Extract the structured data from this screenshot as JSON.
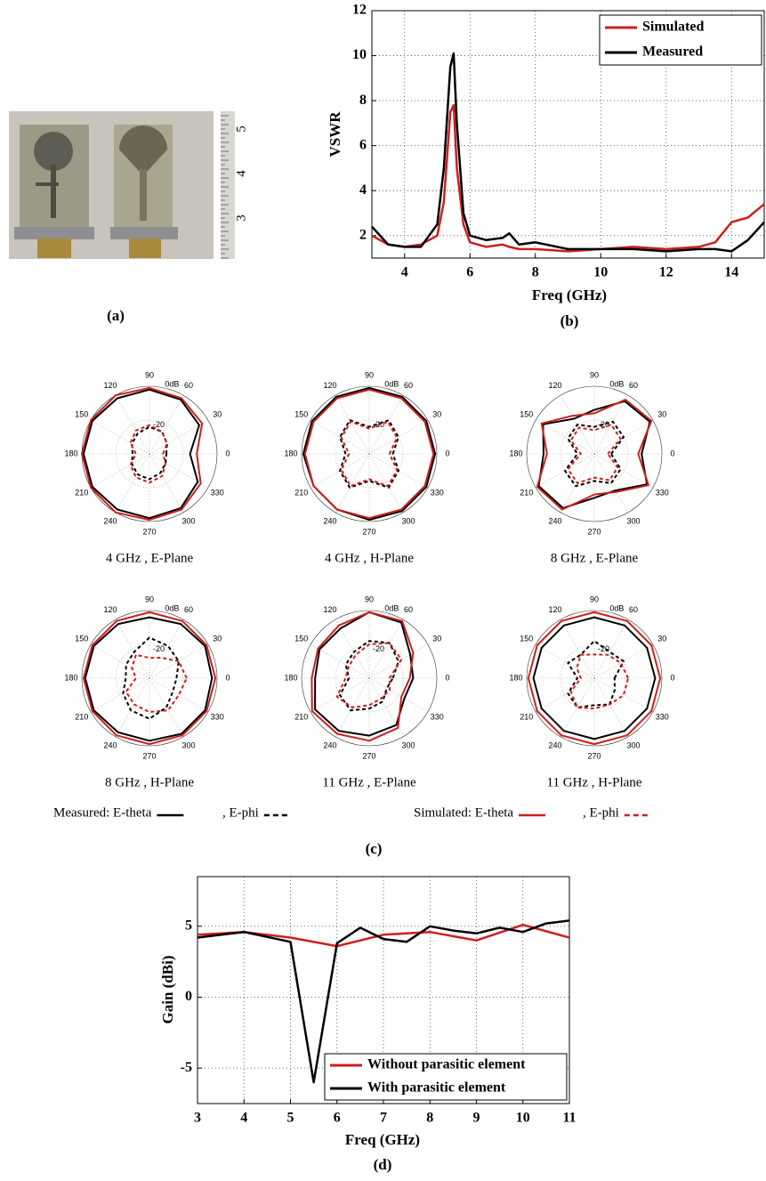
{
  "panel_labels": [
    "(a)",
    "(b)",
    "(c)",
    "(d)"
  ],
  "photo": {
    "ruler_labels": [
      "5",
      "4",
      "3"
    ]
  },
  "polar_legend": {
    "entries": [
      {
        "text": "Measured: E-theta",
        "color": "#000000",
        "dashed": false
      },
      {
        "text": ", E-phi",
        "color": "#000000",
        "dashed": true
      },
      {
        "text": "Simulated: E-theta",
        "color": "#cc1f1f",
        "dashed": false
      },
      {
        "text": ", E-phi",
        "color": "#cc1f1f",
        "dashed": true
      }
    ]
  },
  "chart_data": [
    {
      "type": "line",
      "xlabel": "Freq (GHz)",
      "ylabel": "VSWR",
      "xlim": [
        3,
        15
      ],
      "ylim": [
        1,
        12
      ],
      "xticks": [
        4,
        6,
        8,
        10,
        12,
        14
      ],
      "yticks": [
        2,
        4,
        6,
        8,
        10,
        12
      ],
      "grid": true,
      "legend": "upper right",
      "series": [
        {
          "name": "Simulated",
          "color": "#cc1f1f",
          "x": [
            3,
            3.5,
            4,
            4.5,
            5,
            5.2,
            5.4,
            5.5,
            5.6,
            5.8,
            6,
            6.5,
            7,
            7.2,
            7.5,
            8,
            9,
            10,
            11,
            12,
            13,
            13.5,
            14,
            14.5,
            15
          ],
          "values": [
            2.0,
            1.6,
            1.5,
            1.6,
            2.0,
            3.5,
            7.5,
            7.8,
            5,
            2.5,
            1.7,
            1.5,
            1.6,
            1.5,
            1.4,
            1.4,
            1.3,
            1.4,
            1.5,
            1.4,
            1.5,
            1.7,
            2.6,
            2.8,
            3.4
          ]
        },
        {
          "name": "Measured",
          "color": "#000000",
          "x": [
            3,
            3.5,
            4,
            4.5,
            5,
            5.2,
            5.4,
            5.5,
            5.6,
            5.8,
            6,
            6.5,
            7,
            7.2,
            7.5,
            8,
            9,
            10,
            11,
            12,
            13,
            13.5,
            14,
            14.5,
            15
          ],
          "values": [
            2.4,
            1.6,
            1.5,
            1.5,
            2.5,
            5,
            9.5,
            10.1,
            7,
            3,
            2,
            1.8,
            1.9,
            2.1,
            1.6,
            1.7,
            1.4,
            1.4,
            1.4,
            1.3,
            1.4,
            1.4,
            1.3,
            1.8,
            2.6
          ]
        }
      ]
    },
    {
      "type": "polar",
      "title": "4 GHz , E-Plane",
      "theta": [
        0,
        30,
        60,
        90,
        120,
        150,
        180,
        210,
        240,
        270,
        300,
        330
      ],
      "rlim": [
        -40,
        0
      ],
      "rticks": [
        {
          "value": 0,
          "label": "0dB"
        },
        -20
      ],
      "series": [
        {
          "color": "#000000",
          "dashed": false,
          "values": [
            -16,
            -6,
            -3,
            -2,
            -2,
            -1,
            -1,
            -1,
            -2,
            -2,
            -3,
            -7
          ]
        },
        {
          "color": "#000000",
          "dashed": true,
          "values": [
            -30,
            -28,
            -25,
            -24,
            -26,
            -28,
            -30,
            -28,
            -26,
            -25,
            -27,
            -29
          ]
        },
        {
          "color": "#cc1f1f",
          "dashed": false,
          "values": [
            -12,
            -4,
            -2,
            -1,
            0,
            0,
            0,
            0,
            0,
            -1,
            -2,
            -5
          ]
        },
        {
          "color": "#cc1f1f",
          "dashed": true,
          "values": [
            -32,
            -28,
            -25,
            -23,
            -24,
            -27,
            -32,
            -27,
            -24,
            -23,
            -25,
            -29
          ]
        }
      ]
    },
    {
      "type": "polar",
      "title": "4 GHz , H-Plane",
      "theta": [
        0,
        30,
        60,
        90,
        120,
        150,
        180,
        210,
        240,
        270,
        300,
        330
      ],
      "rlim": [
        -40,
        0
      ],
      "rticks": [
        {
          "value": 0,
          "label": "0dB"
        },
        -20
      ],
      "series": [
        {
          "color": "#000000",
          "dashed": false,
          "values": [
            -1,
            -1,
            -1,
            -1,
            -1,
            -1,
            -1,
            -2,
            -2,
            -1,
            -1,
            -1
          ]
        },
        {
          "color": "#000000",
          "dashed": true,
          "values": [
            -26,
            -20,
            -17,
            -24,
            -17,
            -20,
            -26,
            -20,
            -17,
            -24,
            -17,
            -20
          ]
        },
        {
          "color": "#cc1f1f",
          "dashed": false,
          "values": [
            -2,
            -2,
            -2,
            -2,
            -2,
            -2,
            -2,
            -2,
            -2,
            -2,
            -2,
            -2
          ]
        },
        {
          "color": "#cc1f1f",
          "dashed": true,
          "values": [
            -28,
            -21,
            -18,
            -25,
            -18,
            -21,
            -28,
            -21,
            -18,
            -25,
            -18,
            -21
          ]
        }
      ]
    },
    {
      "type": "polar",
      "title": "8 GHz , E-Plane",
      "theta": [
        0,
        30,
        60,
        90,
        120,
        150,
        180,
        210,
        240,
        270,
        300,
        330
      ],
      "rlim": [
        -40,
        0
      ],
      "rticks": [
        {
          "value": 0,
          "label": "0dB"
        },
        -20
      ],
      "series": [
        {
          "color": "#000000",
          "dashed": false,
          "values": [
            -12,
            -2,
            -4,
            -14,
            -16,
            -5,
            -10,
            -2,
            -3,
            -14,
            -15,
            -4
          ]
        },
        {
          "color": "#000000",
          "dashed": true,
          "values": [
            -30,
            -20,
            -18,
            -24,
            -20,
            -22,
            -30,
            -20,
            -18,
            -24,
            -20,
            -22
          ]
        },
        {
          "color": "#cc1f1f",
          "dashed": false,
          "values": [
            -14,
            -1,
            -3,
            -16,
            -14,
            -4,
            -12,
            -1,
            -2,
            -16,
            -14,
            -3
          ]
        },
        {
          "color": "#cc1f1f",
          "dashed": true,
          "values": [
            -32,
            -22,
            -20,
            -26,
            -22,
            -24,
            -32,
            -22,
            -20,
            -26,
            -22,
            -24
          ]
        }
      ]
    },
    {
      "type": "polar",
      "title": "8 GHz , H-Plane",
      "theta": [
        0,
        30,
        60,
        90,
        120,
        150,
        180,
        210,
        240,
        270,
        300,
        330
      ],
      "rlim": [
        -40,
        0
      ],
      "rticks": [
        {
          "value": 0,
          "label": "0dB"
        },
        -20
      ],
      "series": [
        {
          "color": "#000000",
          "dashed": false,
          "values": [
            -3,
            -2,
            -3,
            -4,
            -3,
            -2,
            -2,
            -2,
            -3,
            -3,
            -2,
            -2
          ]
        },
        {
          "color": "#000000",
          "dashed": true,
          "values": [
            -24,
            -20,
            -18,
            -16,
            -22,
            -24,
            -26,
            -22,
            -18,
            -16,
            -20,
            -24
          ]
        },
        {
          "color": "#cc1f1f",
          "dashed": false,
          "values": [
            -1,
            -1,
            -1,
            -1,
            -1,
            -1,
            -1,
            -1,
            -1,
            -1,
            -1,
            -1
          ]
        },
        {
          "color": "#cc1f1f",
          "dashed": true,
          "values": [
            -18,
            -20,
            -26,
            -28,
            -24,
            -28,
            -32,
            -24,
            -22,
            -20,
            -18,
            -20
          ]
        }
      ]
    },
    {
      "type": "polar",
      "title": "11 GHz , E-Plane",
      "theta": [
        0,
        30,
        60,
        90,
        120,
        150,
        180,
        210,
        240,
        270,
        300,
        330
      ],
      "rlim": [
        -40,
        0
      ],
      "rticks": [
        {
          "value": 0,
          "label": "0dB"
        },
        -20
      ],
      "series": [
        {
          "color": "#000000",
          "dashed": false,
          "values": [
            -14,
            -12,
            -2,
            -1,
            -6,
            -6,
            -8,
            -3,
            -4,
            -6,
            -8,
            -16
          ]
        },
        {
          "color": "#000000",
          "dashed": true,
          "values": [
            -26,
            -20,
            -16,
            -18,
            -22,
            -24,
            -28,
            -20,
            -18,
            -22,
            -24,
            -28
          ]
        },
        {
          "color": "#cc1f1f",
          "dashed": false,
          "values": [
            -16,
            -10,
            -1,
            -1,
            -4,
            -5,
            -6,
            -1,
            -2,
            -3,
            -6,
            -18
          ]
        },
        {
          "color": "#cc1f1f",
          "dashed": true,
          "values": [
            -28,
            -18,
            -16,
            -20,
            -24,
            -26,
            -26,
            -18,
            -20,
            -24,
            -26,
            -26
          ]
        }
      ]
    },
    {
      "type": "polar",
      "title": "11 GHz , H-Plane",
      "theta": [
        0,
        30,
        60,
        90,
        120,
        150,
        180,
        210,
        240,
        270,
        300,
        330
      ],
      "rlim": [
        -40,
        0
      ],
      "rticks": [
        {
          "value": 0,
          "label": "0dB"
        },
        -20
      ],
      "series": [
        {
          "color": "#000000",
          "dashed": false,
          "values": [
            -4,
            -4,
            -4,
            -4,
            -4,
            -4,
            -4,
            -4,
            -4,
            -4,
            -4,
            -4
          ]
        },
        {
          "color": "#000000",
          "dashed": true,
          "values": [
            -28,
            -20,
            -22,
            -18,
            -24,
            -22,
            -30,
            -22,
            -20,
            -24,
            -22,
            -26
          ]
        },
        {
          "color": "#cc1f1f",
          "dashed": false,
          "values": [
            -1,
            -1,
            -1,
            -1,
            -1,
            -1,
            -1,
            -1,
            -1,
            -1,
            -1,
            -1
          ]
        },
        {
          "color": "#cc1f1f",
          "dashed": true,
          "values": [
            -20,
            -22,
            -24,
            -26,
            -24,
            -28,
            -32,
            -24,
            -20,
            -22,
            -22,
            -20
          ]
        }
      ]
    },
    {
      "type": "line",
      "xlabel": "Freq (GHz)",
      "ylabel": "Gain (dBi)",
      "xlim": [
        3,
        11
      ],
      "ylim": [
        -7.5,
        8.5
      ],
      "xticks": [
        3,
        4,
        5,
        6,
        7,
        8,
        9,
        10,
        11
      ],
      "yticks": [
        -5,
        0,
        5
      ],
      "grid": true,
      "legend": "lower right",
      "series": [
        {
          "name": "Without parasitic element",
          "color": "#cc1f1f",
          "x": [
            3,
            4,
            5,
            6,
            7,
            8,
            9,
            10,
            11
          ],
          "values": [
            4.4,
            4.6,
            4.2,
            3.6,
            4.4,
            4.6,
            4,
            5.1,
            4.2
          ]
        },
        {
          "name": "With parasitic element",
          "color": "#000000",
          "x": [
            3,
            4,
            5,
            5.5,
            6,
            6.5,
            7,
            7.5,
            8,
            8.5,
            9,
            9.5,
            10,
            10.5,
            11
          ],
          "values": [
            4.2,
            4.6,
            3.9,
            -6,
            3.8,
            4.9,
            4.1,
            3.9,
            5.0,
            4.7,
            4.5,
            4.9,
            4.6,
            5.2,
            5.4
          ]
        }
      ]
    }
  ]
}
